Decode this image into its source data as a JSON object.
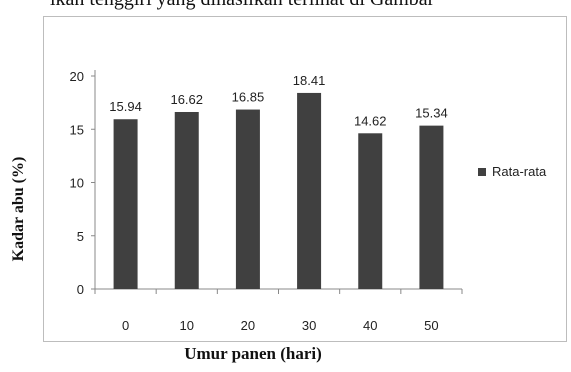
{
  "page": {
    "top_text": "ikan tenggiri yang dihasilkan terlihat di Gambar"
  },
  "chart_data": {
    "type": "bar",
    "title": "",
    "categories": [
      "0",
      "10",
      "20",
      "30",
      "40",
      "50"
    ],
    "series": [
      {
        "name": "Rata-rata",
        "values": [
          15.94,
          16.62,
          16.85,
          18.41,
          14.62,
          15.34
        ],
        "color": "#404040"
      }
    ],
    "data_labels": [
      "15.94",
      "16.62",
      "16.85",
      "18.41",
      "14.62",
      "15.34"
    ],
    "xlabel": "Umur panen (hari)",
    "ylabel": "Kadar abu (%)",
    "ylim": [
      0,
      20
    ],
    "yticks": [
      0,
      5,
      10,
      15,
      20
    ],
    "grid": false,
    "legend_position": "right"
  }
}
